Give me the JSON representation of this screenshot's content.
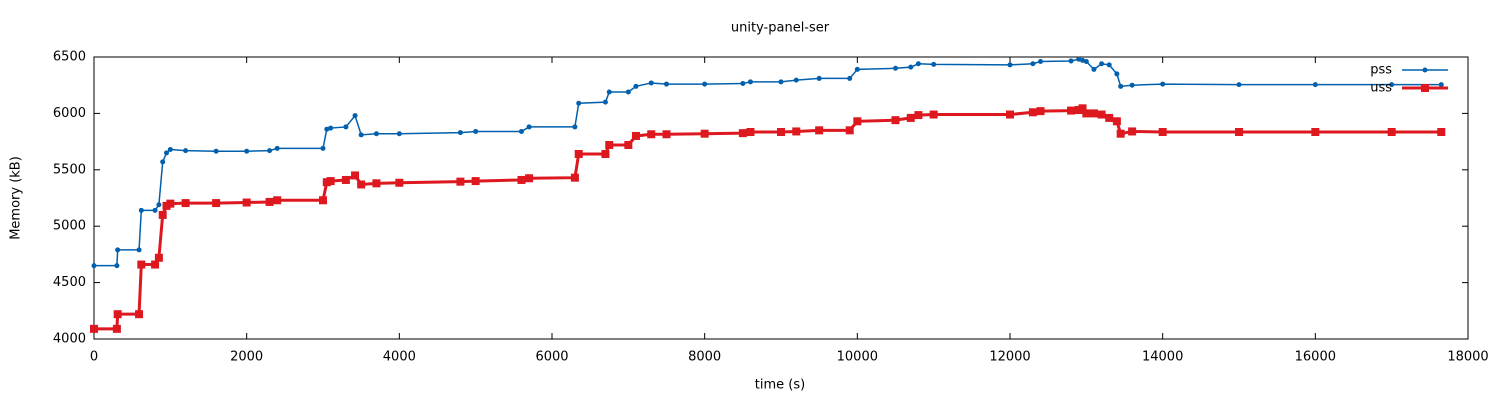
{
  "chart_data": {
    "type": "line",
    "title": "unity-panel-ser",
    "x_label": "time (s)",
    "y_label": "Memory (kB)",
    "x": [
      0,
      300,
      310,
      590,
      620,
      800,
      850,
      900,
      950,
      1000,
      1200,
      1600,
      2000,
      2300,
      2400,
      3000,
      3050,
      3100,
      3300,
      3420,
      3500,
      3700,
      4000,
      4800,
      5000,
      5600,
      5700,
      6300,
      6350,
      6700,
      6750,
      7000,
      7100,
      7300,
      7500,
      8000,
      8500,
      8600,
      9000,
      9200,
      9500,
      9900,
      10000,
      10500,
      10700,
      10800,
      11000,
      12000,
      12300,
      12400,
      12800,
      12900,
      12950,
      13000,
      13100,
      13200,
      13300,
      13400,
      13450,
      13600,
      14000,
      15000,
      16000,
      17000,
      17650
    ],
    "series": [
      {
        "name": "pss",
        "color": "#0060ad",
        "values": [
          4650,
          4650,
          4790,
          4790,
          5140,
          5140,
          5190,
          5570,
          5650,
          5680,
          5670,
          5665,
          5665,
          5670,
          5690,
          5690,
          5860,
          5870,
          5880,
          5980,
          5810,
          5820,
          5820,
          5830,
          5840,
          5840,
          5880,
          5880,
          6090,
          6100,
          6190,
          6190,
          6240,
          6270,
          6260,
          6260,
          6265,
          6280,
          6280,
          6295,
          6310,
          6310,
          6390,
          6400,
          6410,
          6440,
          6435,
          6430,
          6440,
          6460,
          6465,
          6480,
          6470,
          6460,
          6390,
          6440,
          6430,
          6350,
          6240,
          6250,
          6260,
          6255,
          6255,
          6255,
          6255
        ]
      },
      {
        "name": "uss",
        "color": "#dd181f",
        "values": [
          4090,
          4090,
          4220,
          4220,
          4660,
          4660,
          4720,
          5100,
          5180,
          5200,
          5205,
          5205,
          5210,
          5215,
          5230,
          5230,
          5390,
          5400,
          5410,
          5450,
          5370,
          5380,
          5385,
          5395,
          5400,
          5410,
          5425,
          5430,
          5640,
          5640,
          5720,
          5720,
          5800,
          5815,
          5815,
          5820,
          5825,
          5835,
          5835,
          5840,
          5850,
          5850,
          5930,
          5940,
          5960,
          5985,
          5990,
          5990,
          6010,
          6020,
          6025,
          6030,
          6045,
          6000,
          6000,
          5990,
          5960,
          5930,
          5820,
          5840,
          5835,
          5835,
          5835,
          5835,
          5835
        ]
      }
    ],
    "xlim": [
      0,
      18000
    ],
    "xticks": [
      0,
      2000,
      4000,
      6000,
      8000,
      10000,
      12000,
      14000,
      16000,
      18000
    ],
    "ylim": [
      4000,
      6500
    ],
    "yticks": [
      4000,
      4500,
      5000,
      5500,
      6000,
      6500
    ],
    "grid": false,
    "legend": "top-right"
  }
}
